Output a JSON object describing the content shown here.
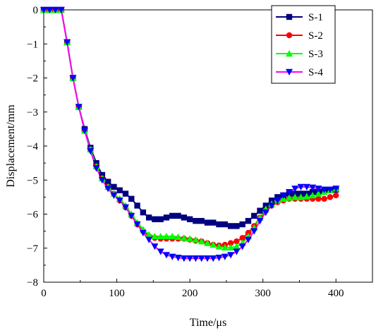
{
  "chart_data": {
    "type": "line",
    "xlabel": "Time/μs",
    "ylabel": "Displacement/mm",
    "xlim": [
      0,
      450
    ],
    "ylim": [
      -8,
      0
    ],
    "x_ticks": [
      0,
      100,
      200,
      300,
      400
    ],
    "y_ticks": [
      0,
      -1,
      -2,
      -3,
      -4,
      -5,
      -6,
      -7,
      -8
    ],
    "grid": false,
    "legend": "top-right",
    "series": [
      {
        "name": "S-1",
        "color": "#000080",
        "marker": "square",
        "x": [
          0,
          8,
          16,
          24,
          32,
          40,
          48,
          56,
          64,
          72,
          80,
          88,
          96,
          104,
          112,
          120,
          128,
          136,
          144,
          152,
          160,
          168,
          176,
          184,
          192,
          200,
          208,
          216,
          224,
          232,
          240,
          248,
          256,
          264,
          272,
          280,
          288,
          296,
          304,
          312,
          320,
          328,
          336,
          344,
          352,
          360,
          368,
          376,
          384,
          392,
          400
        ],
        "y": [
          0,
          0,
          0,
          0,
          -0.95,
          -2.0,
          -2.85,
          -3.5,
          -4.05,
          -4.5,
          -4.85,
          -5.05,
          -5.2,
          -5.3,
          -5.4,
          -5.55,
          -5.75,
          -5.95,
          -6.1,
          -6.15,
          -6.15,
          -6.1,
          -6.05,
          -6.05,
          -6.1,
          -6.15,
          -6.2,
          -6.2,
          -6.25,
          -6.25,
          -6.3,
          -6.3,
          -6.35,
          -6.35,
          -6.3,
          -6.2,
          -6.05,
          -5.9,
          -5.75,
          -5.6,
          -5.5,
          -5.45,
          -5.4,
          -5.4,
          -5.4,
          -5.4,
          -5.35,
          -5.35,
          -5.3,
          -5.3,
          -5.28
        ]
      },
      {
        "name": "S-2",
        "color": "#ff0000",
        "marker": "circle",
        "x": [
          0,
          8,
          16,
          24,
          32,
          40,
          48,
          56,
          64,
          72,
          80,
          88,
          96,
          104,
          112,
          120,
          128,
          136,
          144,
          152,
          160,
          168,
          176,
          184,
          192,
          200,
          208,
          216,
          224,
          232,
          240,
          248,
          256,
          264,
          272,
          280,
          288,
          296,
          304,
          312,
          320,
          328,
          336,
          344,
          352,
          360,
          368,
          376,
          384,
          392,
          400
        ],
        "y": [
          0,
          0,
          0,
          0,
          -0.95,
          -2.0,
          -2.85,
          -3.55,
          -4.1,
          -4.6,
          -4.95,
          -5.2,
          -5.4,
          -5.6,
          -5.8,
          -6.05,
          -6.3,
          -6.5,
          -6.65,
          -6.7,
          -6.72,
          -6.72,
          -6.72,
          -6.72,
          -6.72,
          -6.75,
          -6.78,
          -6.8,
          -6.85,
          -6.9,
          -6.92,
          -6.9,
          -6.85,
          -6.8,
          -6.7,
          -6.55,
          -6.35,
          -6.1,
          -5.9,
          -5.75,
          -5.65,
          -5.6,
          -5.55,
          -5.55,
          -5.55,
          -5.55,
          -5.55,
          -5.55,
          -5.55,
          -5.5,
          -5.45
        ]
      },
      {
        "name": "S-3",
        "color": "#00ff00",
        "marker": "triangle-up",
        "x": [
          0,
          8,
          16,
          24,
          32,
          40,
          48,
          56,
          64,
          72,
          80,
          88,
          96,
          104,
          112,
          120,
          128,
          136,
          144,
          152,
          160,
          168,
          176,
          184,
          192,
          200,
          208,
          216,
          224,
          232,
          240,
          248,
          256,
          264,
          272,
          280,
          288,
          296,
          304,
          312,
          320,
          328,
          336,
          344,
          352,
          360,
          368,
          376,
          384,
          392,
          400
        ],
        "y": [
          0,
          0,
          0,
          0,
          -0.95,
          -2.0,
          -2.85,
          -3.55,
          -4.1,
          -4.6,
          -4.95,
          -5.2,
          -5.4,
          -5.55,
          -5.75,
          -6.0,
          -6.25,
          -6.45,
          -6.6,
          -6.65,
          -6.65,
          -6.65,
          -6.65,
          -6.67,
          -6.7,
          -6.72,
          -6.75,
          -6.8,
          -6.85,
          -6.9,
          -6.95,
          -6.98,
          -6.98,
          -6.95,
          -6.85,
          -6.65,
          -6.4,
          -6.1,
          -5.85,
          -5.7,
          -5.6,
          -5.55,
          -5.52,
          -5.5,
          -5.5,
          -5.48,
          -5.45,
          -5.4,
          -5.35,
          -5.3,
          -5.25
        ]
      },
      {
        "name": "S-4",
        "color": "#0000ff",
        "line_color": "#ff00ff",
        "marker": "triangle-down",
        "x": [
          0,
          8,
          16,
          24,
          32,
          40,
          48,
          56,
          64,
          72,
          80,
          88,
          96,
          104,
          112,
          120,
          128,
          136,
          144,
          152,
          160,
          168,
          176,
          184,
          192,
          200,
          208,
          216,
          224,
          232,
          240,
          248,
          256,
          264,
          272,
          280,
          288,
          296,
          304,
          312,
          320,
          328,
          336,
          344,
          352,
          360,
          368,
          376,
          384,
          392,
          400
        ],
        "y": [
          0,
          0,
          0,
          0,
          -0.95,
          -2.0,
          -2.85,
          -3.55,
          -4.15,
          -4.65,
          -5.0,
          -5.25,
          -5.45,
          -5.6,
          -5.8,
          -6.05,
          -6.3,
          -6.55,
          -6.75,
          -6.95,
          -7.1,
          -7.2,
          -7.25,
          -7.28,
          -7.3,
          -7.3,
          -7.3,
          -7.3,
          -7.3,
          -7.3,
          -7.28,
          -7.25,
          -7.2,
          -7.1,
          -6.95,
          -6.75,
          -6.5,
          -6.2,
          -5.95,
          -5.75,
          -5.6,
          -5.45,
          -5.35,
          -5.25,
          -5.2,
          -5.2,
          -5.22,
          -5.25,
          -5.28,
          -5.28,
          -5.25
        ]
      }
    ]
  }
}
